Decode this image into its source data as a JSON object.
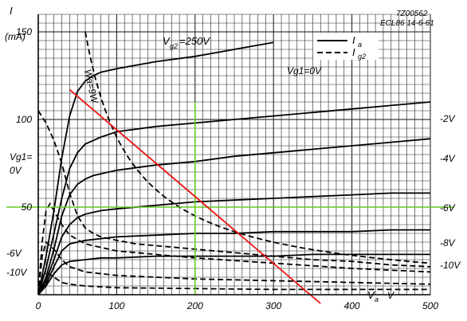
{
  "chart_data": {
    "type": "line",
    "x_unit_label": "V",
    "x_symbol": "V",
    "x_subscript": "a",
    "y_symbol": "I",
    "y_unit_label": "(mA)",
    "xlim": [
      0,
      500
    ],
    "ylim": [
      0,
      160
    ],
    "x_ticks": [
      0,
      100,
      200,
      300,
      400,
      500
    ],
    "y_ticks": [
      50,
      100,
      150
    ],
    "x_tick_labels": [
      "0",
      "100",
      "200",
      "300",
      "400",
      "500"
    ],
    "y_tick_labels": [
      "50",
      "100",
      "150"
    ],
    "grid": true,
    "ref_code": "7Z00562",
    "ref_type_date": "ECL86  14-6-61",
    "condition": {
      "symbol": "V",
      "subscript": "g2",
      "value": "=250V"
    },
    "legend": {
      "position": "top-right",
      "entries": [
        {
          "symbol": "I",
          "subscript": "a",
          "style": "solid"
        },
        {
          "symbol": "I",
          "subscript": "g2",
          "style": "dashed"
        }
      ]
    },
    "wa_label": "Wa=9W",
    "vg1_zero_label_left": {
      "top": "Vg1=",
      "bottom": "0V"
    },
    "series": [
      {
        "name": "Vg1=0V",
        "label": "Vg1=0V",
        "kind": "Ia",
        "style": "solid",
        "x": [
          0,
          10,
          20,
          30,
          40,
          50,
          60,
          70,
          80,
          100,
          150,
          200,
          250,
          300
        ],
        "y": [
          0,
          22,
          48,
          78,
          102,
          116,
          122,
          125,
          127,
          129,
          133,
          136,
          140,
          144
        ]
      },
      {
        "name": "Ig2 Vg1=0V",
        "kind": "Ig2",
        "style": "dashed",
        "x": [
          0,
          10,
          20,
          30,
          40,
          50,
          60,
          70,
          80,
          100,
          125,
          150,
          200,
          250,
          300,
          350,
          400,
          450,
          500
        ],
        "y": [
          105,
          98,
          88,
          75,
          58,
          45,
          38,
          35,
          33,
          31,
          29,
          28,
          26,
          24,
          22,
          20,
          19,
          17,
          16
        ]
      },
      {
        "name": "-2V",
        "label": "-2V",
        "kind": "Ia",
        "style": "solid",
        "x": [
          0,
          10,
          20,
          30,
          40,
          50,
          60,
          70,
          80,
          100,
          150,
          200,
          250,
          300,
          350,
          400,
          450,
          500
        ],
        "y": [
          0,
          15,
          35,
          55,
          72,
          81,
          86,
          88,
          90,
          93,
          96,
          98,
          100,
          102,
          104,
          106,
          108,
          110
        ]
      },
      {
        "name": "-4V",
        "label": "-4V",
        "kind": "Ia",
        "style": "solid",
        "x": [
          0,
          10,
          20,
          30,
          40,
          50,
          60,
          70,
          80,
          100,
          150,
          200,
          250,
          300,
          350,
          400,
          450,
          500
        ],
        "y": [
          0,
          10,
          26,
          45,
          57,
          63,
          66,
          68,
          69,
          71,
          74,
          76,
          79,
          81,
          83,
          85,
          87,
          89
        ]
      },
      {
        "name": "-6V",
        "label": "-6V",
        "kind": "Ia",
        "style": "solid",
        "x": [
          0,
          10,
          20,
          30,
          40,
          50,
          60,
          80,
          100,
          150,
          200,
          250,
          300,
          350,
          400,
          450,
          500
        ],
        "y": [
          0,
          8,
          20,
          33,
          40,
          44,
          46,
          48,
          49,
          51,
          53,
          54,
          55,
          56,
          57,
          58,
          58
        ]
      },
      {
        "name": "-8V",
        "label": "-8V",
        "kind": "Ia",
        "style": "solid",
        "x": [
          0,
          10,
          20,
          30,
          40,
          60,
          80,
          100,
          150,
          200,
          250,
          300,
          350,
          400,
          450,
          500
        ],
        "y": [
          0,
          6,
          16,
          25,
          29,
          31,
          32,
          33,
          34,
          35,
          35,
          36,
          36,
          36,
          37,
          37
        ]
      },
      {
        "name": "-10V",
        "label": "-10V",
        "kind": "Ia",
        "style": "solid",
        "x": [
          0,
          10,
          20,
          30,
          40,
          60,
          80,
          100,
          150,
          200,
          250,
          300,
          350,
          400,
          450,
          500
        ],
        "y": [
          0,
          5,
          12,
          17,
          19,
          20,
          21,
          21,
          22,
          22,
          22,
          22,
          23,
          23,
          23,
          23
        ]
      },
      {
        "name": "Ig2 -2V",
        "kind": "Ig2",
        "style": "dashed",
        "x": [
          0,
          5,
          10,
          15,
          20,
          30,
          40,
          60,
          80,
          100,
          150,
          200,
          300,
          400,
          500
        ],
        "y": [
          0,
          30,
          48,
          52,
          48,
          40,
          34,
          29,
          27,
          25,
          23,
          21,
          18,
          15,
          13
        ]
      },
      {
        "name": "Ig2 -6V",
        "kind": "Ig2",
        "style": "dashed",
        "x": [
          0,
          5,
          10,
          20,
          30,
          40,
          60,
          80,
          100,
          150,
          200,
          300,
          400,
          500
        ],
        "y": [
          0,
          22,
          30,
          26,
          20,
          16,
          13,
          12,
          11,
          10,
          9,
          8,
          7,
          6
        ]
      },
      {
        "name": "Ig2 -10V",
        "kind": "Ig2",
        "style": "dashed",
        "x": [
          0,
          5,
          10,
          20,
          30,
          40,
          60,
          100,
          200,
          300,
          400,
          500
        ],
        "y": [
          0,
          10,
          13,
          10,
          7,
          6,
          5,
          4,
          3.5,
          3,
          3,
          3
        ]
      }
    ],
    "wa_hyperbola": {
      "name": "Wa=9W",
      "style": "dashed",
      "watts": 9
    },
    "load_line": {
      "color": "#ee1111",
      "x": [
        40,
        360
      ],
      "y": [
        117,
        -5
      ]
    },
    "operating_point": {
      "color": "#66cc22",
      "x": 200,
      "y": 50
    }
  }
}
